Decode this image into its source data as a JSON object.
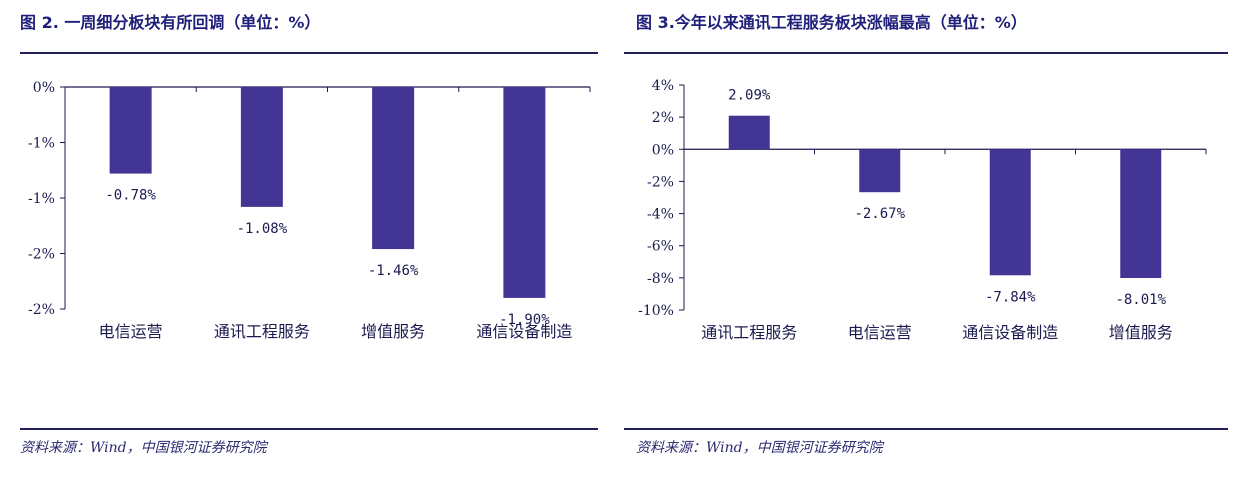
{
  "chart_data": [
    {
      "type": "bar",
      "title": "图 2. 一周细分板块有所回调（单位：%）",
      "categories": [
        "电信运营",
        "通讯工程服务",
        "增值服务",
        "通信设备制造"
      ],
      "values": [
        -0.78,
        -1.08,
        -1.46,
        -1.9
      ],
      "data_labels": [
        "-0.78%",
        "-1.08%",
        "-1.46%",
        "-1.90%"
      ],
      "ylim": [
        -2.0,
        0
      ],
      "y_tick_labels": [
        "0%",
        "-1%",
        "-1%",
        "-2%",
        "-2%"
      ],
      "bar_color": "#433594",
      "grid": false,
      "source": "资料来源：Wind，中国银河证券研究院"
    },
    {
      "type": "bar",
      "title": "图 3.今年以来通讯工程服务板块涨幅最高（单位：%）",
      "categories": [
        "通讯工程服务",
        "电信运营",
        "通信设备制造",
        "增值服务"
      ],
      "values": [
        2.09,
        -2.67,
        -7.84,
        -8.01
      ],
      "data_labels": [
        "2.09%",
        "-2.67%",
        "-7.84%",
        "-8.01%"
      ],
      "ylim": [
        -10,
        4
      ],
      "y_tick_labels": [
        "4%",
        "2%",
        "0%",
        "-2%",
        "-4%",
        "-6%",
        "-8%",
        "-10%"
      ],
      "bar_color": "#433594",
      "grid": false,
      "source": "资料来源：Wind，中国银河证券研究院"
    }
  ]
}
